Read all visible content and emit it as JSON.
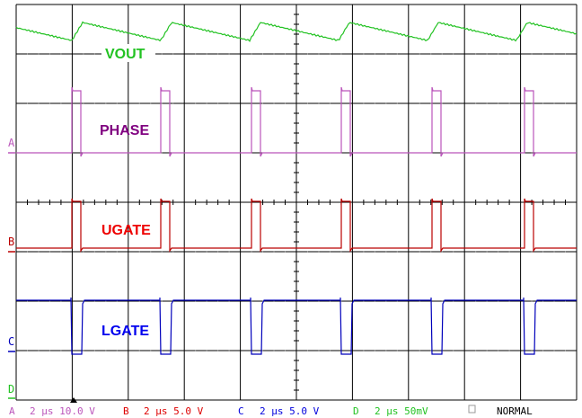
{
  "traces": {
    "vout": {
      "label": "VOUT",
      "color": "#22c222"
    },
    "phase": {
      "label": "PHASE",
      "color": "#800080",
      "trace_color": "#bb55bb"
    },
    "ugate": {
      "label": "UGATE",
      "color": "#ee0000",
      "trace_color": "#bb0000"
    },
    "lgate": {
      "label": "LGATE",
      "color": "#0000ee",
      "trace_color": "#0000bb"
    }
  },
  "channel_markers": [
    "A",
    "B",
    "C",
    "D"
  ],
  "status_bar": [
    {
      "channel": "A",
      "text": "2 µs 10.0 V",
      "color": "#bb55bb"
    },
    {
      "channel": "B",
      "text": "2 µs  5.0 V",
      "color": "#dd0000"
    },
    {
      "channel": "C",
      "text": "2 µs  5.0 V",
      "color": "#0000dd"
    },
    {
      "channel": "D",
      "text": "2 µs 50mV",
      "color": "#22c222"
    }
  ],
  "mode": "NORMAL",
  "timing": {
    "period_us": 4,
    "div_us": 2
  }
}
